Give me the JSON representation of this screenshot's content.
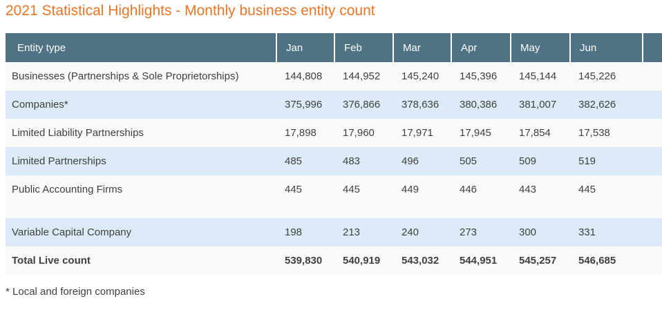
{
  "page": {
    "title": "2021 Statistical Highlights - Monthly business entity count",
    "footnote": "* Local and foreign companies"
  },
  "table": {
    "entity_type_header": "Entity type",
    "months": [
      "Jan",
      "Feb",
      "Mar",
      "Apr",
      "May",
      "Jun"
    ],
    "rows": [
      {
        "label": "Businesses (Partnerships & Sole Proprietorships)",
        "values": [
          "144,808",
          "144,952",
          "145,240",
          "145,396",
          "145,144",
          "145,226"
        ]
      },
      {
        "label": "Companies*",
        "values": [
          "375,996",
          "376,866",
          "378,636",
          "380,386",
          "381,007",
          "382,626"
        ]
      },
      {
        "label": "Limited Liability Partnerships",
        "values": [
          "17,898",
          "17,960",
          "17,971",
          "17,945",
          "17,854",
          "17,538"
        ]
      },
      {
        "label": "Limited Partnerships",
        "values": [
          "485",
          "483",
          "496",
          "505",
          "509",
          "519"
        ]
      },
      {
        "label": "Public Accounting Firms",
        "values": [
          "445",
          "445",
          "449",
          "446",
          "443",
          "445"
        ]
      },
      {
        "label": "Variable Capital Company",
        "values": [
          "198",
          "213",
          "240",
          "273",
          "300",
          "331"
        ]
      },
      {
        "label": "Total Live count",
        "values": [
          "539,830",
          "540,919",
          "543,032",
          "544,951",
          "545,257",
          "546,685"
        ]
      }
    ]
  },
  "colors": {
    "title_orange": "#e87628",
    "header_bg": "#4f7384",
    "header_text": "#ffffff",
    "stripe_blue": "#dcebf7",
    "stripe_white": "#fafafa",
    "body_text": "#3f3f3f"
  },
  "chart_data": {
    "type": "table",
    "title": "2021 Statistical Highlights - Monthly business entity count",
    "categories": [
      "Jan",
      "Feb",
      "Mar",
      "Apr",
      "May",
      "Jun"
    ],
    "series": [
      {
        "name": "Businesses (Partnerships & Sole Proprietorships)",
        "values": [
          144808,
          144952,
          145240,
          145396,
          145144,
          145226
        ]
      },
      {
        "name": "Companies*",
        "values": [
          375996,
          376866,
          378636,
          380386,
          381007,
          382626
        ]
      },
      {
        "name": "Limited Liability Partnerships",
        "values": [
          17898,
          17960,
          17971,
          17945,
          17854,
          17538
        ]
      },
      {
        "name": "Limited Partnerships",
        "values": [
          485,
          483,
          496,
          505,
          509,
          519
        ]
      },
      {
        "name": "Public Accounting Firms",
        "values": [
          445,
          445,
          449,
          446,
          443,
          445
        ]
      },
      {
        "name": "Variable Capital Company",
        "values": [
          198,
          213,
          240,
          273,
          300,
          331
        ]
      },
      {
        "name": "Total Live count",
        "values": [
          539830,
          540919,
          543032,
          544951,
          545257,
          546685
        ]
      }
    ],
    "footnote": "* Local and foreign companies",
    "layout": {
      "striped_rows": true,
      "header_position": "top",
      "spacer_row_before": "Variable Capital Company"
    }
  }
}
